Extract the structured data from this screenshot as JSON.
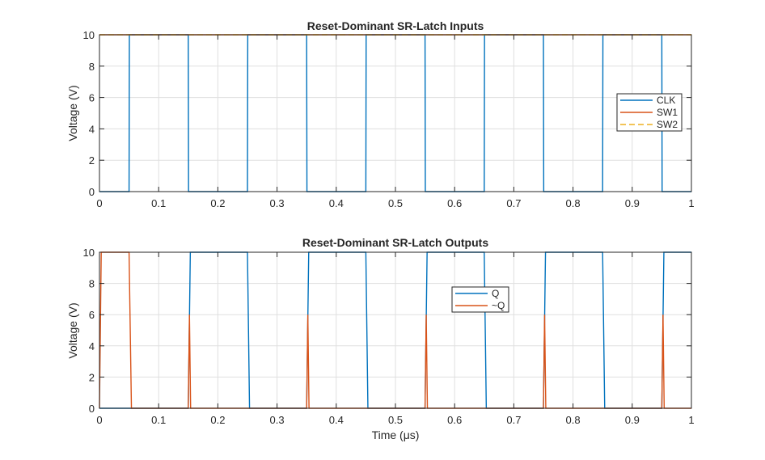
{
  "chart_data": [
    {
      "type": "line",
      "title": "Reset-Dominant SR-Latch Inputs",
      "xlabel": "",
      "ylabel": "Voltage (V)",
      "xlim": [
        0,
        1
      ],
      "ylim": [
        0,
        10
      ],
      "xticks": [
        "0",
        "0.1",
        "0.2",
        "0.3",
        "0.4",
        "0.5",
        "0.6",
        "0.7",
        "0.8",
        "0.9",
        "1"
      ],
      "yticks": [
        "0",
        "2",
        "4",
        "6",
        "8",
        "10"
      ],
      "grid": true,
      "legend_position": "right",
      "series": [
        {
          "name": "CLK",
          "color": "#0072BD",
          "style": "solid",
          "x": [
            0,
            0.05,
            0.0505,
            0.15,
            0.1505,
            0.25,
            0.2505,
            0.35,
            0.3505,
            0.45,
            0.4505,
            0.55,
            0.5505,
            0.65,
            0.6505,
            0.75,
            0.7505,
            0.85,
            0.8505,
            0.95,
            0.9505,
            1
          ],
          "y": [
            0,
            0,
            10,
            10,
            0,
            0,
            10,
            10,
            0,
            0,
            10,
            10,
            0,
            0,
            10,
            10,
            0,
            0,
            10,
            10,
            0,
            0
          ]
        },
        {
          "name": "SW1",
          "color": "#D95319",
          "style": "solid",
          "x": [
            0,
            1
          ],
          "y": [
            10,
            10
          ]
        },
        {
          "name": "SW2",
          "color": "#EDB120",
          "style": "dashed",
          "x": [
            0,
            1
          ],
          "y": [
            10,
            10
          ]
        }
      ]
    },
    {
      "type": "line",
      "title": "Reset-Dominant SR-Latch Outputs",
      "xlabel": "Time  (μs)",
      "ylabel": "Voltage (V)",
      "xlim": [
        0,
        1
      ],
      "ylim": [
        0,
        10
      ],
      "xticks": [
        "0",
        "0.1",
        "0.2",
        "0.3",
        "0.4",
        "0.5",
        "0.6",
        "0.7",
        "0.8",
        "0.9",
        "1"
      ],
      "yticks": [
        "0",
        "2",
        "4",
        "6",
        "8",
        "10"
      ],
      "grid": true,
      "legend_position": "center",
      "series": [
        {
          "name": "Q",
          "color": "#0072BD",
          "style": "solid",
          "x": [
            0,
            0.15,
            0.1535,
            0.25,
            0.2535,
            0.35,
            0.3535,
            0.45,
            0.4535,
            0.55,
            0.5535,
            0.65,
            0.6535,
            0.75,
            0.7535,
            0.85,
            0.8535,
            0.95,
            0.9535,
            1
          ],
          "y": [
            0,
            0,
            10,
            10,
            0,
            0,
            10,
            10,
            0,
            0,
            10,
            10,
            0,
            0,
            10,
            10,
            0,
            0,
            10,
            10
          ]
        },
        {
          "name": "~Q",
          "color": "#D95319",
          "style": "solid",
          "x": [
            0,
            0.003,
            0.05,
            0.054,
            0.15,
            0.152,
            0.154,
            0.35,
            0.352,
            0.354,
            0.55,
            0.552,
            0.554,
            0.75,
            0.752,
            0.754,
            0.95,
            0.952,
            0.954,
            1
          ],
          "y": [
            0,
            10,
            10,
            0,
            0,
            6,
            0,
            0,
            6,
            0,
            0,
            6,
            0,
            0,
            6,
            0,
            0,
            6,
            0,
            0
          ]
        }
      ]
    }
  ]
}
